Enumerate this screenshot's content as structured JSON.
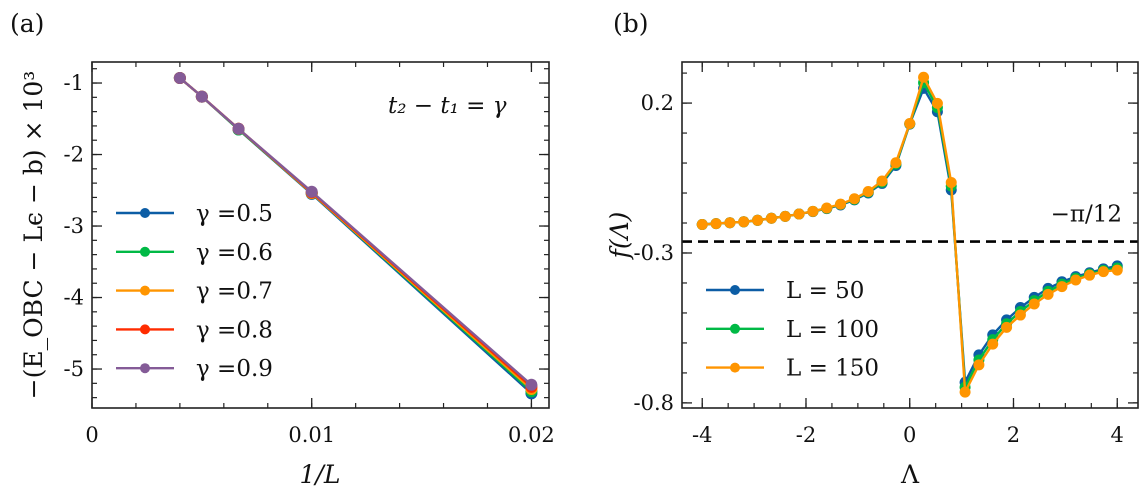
{
  "chart_data": [
    {
      "type": "line",
      "panel_label": "(a)",
      "xlabel": "1/L",
      "ylabel": "−(E_OBC − Lϵ − b) × 10³",
      "xlim": [
        0,
        0.0208
      ],
      "ylim": [
        -5.545,
        -0.706
      ],
      "xticks": [
        0,
        0.01,
        0.02
      ],
      "xtick_labels": [
        "0",
        "0.01",
        "0.02"
      ],
      "yticks": [
        -1,
        -2,
        -3,
        -4,
        -5
      ],
      "ytick_labels": [
        "-1",
        "-2",
        "-3",
        "-4",
        "-5"
      ],
      "xminor": 0.002,
      "yminor": 0.2,
      "annotation": "t₂ − t₁ = γ",
      "legend_position": "center-left",
      "x": [
        0.004,
        0.005,
        0.00667,
        0.01,
        0.02
      ],
      "series": [
        {
          "name": "γ =0.5",
          "color": "#0C5DA5",
          "values": [
            -0.93,
            -1.19,
            -1.65,
            -2.55,
            -5.34
          ]
        },
        {
          "name": "γ =0.6",
          "color": "#00B945",
          "values": [
            -0.93,
            -1.19,
            -1.65,
            -2.54,
            -5.31
          ]
        },
        {
          "name": "γ =0.7",
          "color": "#FF9500",
          "values": [
            -0.93,
            -1.19,
            -1.64,
            -2.54,
            -5.28
          ]
        },
        {
          "name": "γ =0.8",
          "color": "#FF2C00",
          "values": [
            -0.93,
            -1.19,
            -1.64,
            -2.53,
            -5.25
          ]
        },
        {
          "name": "γ =0.9",
          "color": "#845B97",
          "values": [
            -0.93,
            -1.19,
            -1.64,
            -2.52,
            -5.22
          ]
        }
      ]
    },
    {
      "type": "line",
      "panel_label": "(b)",
      "xlabel": "Λ",
      "ylabel": "f(Λ)",
      "xlim": [
        -4.39,
        4.4
      ],
      "ylim": [
        -0.817,
        0.337
      ],
      "xticks": [
        -4,
        -2,
        0,
        2,
        4
      ],
      "xtick_labels": [
        "-4",
        "-2",
        "0",
        "2",
        "4"
      ],
      "yticks": [
        0.2,
        -0.3,
        -0.8
      ],
      "ytick_labels": [
        "0.2",
        "-0.3",
        "-0.8"
      ],
      "xminor": 0.5,
      "yminor": 0.1,
      "hline": {
        "value": -0.2618,
        "label": "−π/12"
      },
      "legend_position": "lower-left",
      "x_range": {
        "start": -4,
        "stop": 4,
        "count": 31
      },
      "series": [
        {
          "name": "L = 50",
          "color": "#0C5DA5",
          "values": [
            -0.205,
            -0.202,
            -0.199,
            -0.196,
            -0.191,
            -0.184,
            -0.178,
            -0.17,
            -0.162,
            -0.152,
            -0.14,
            -0.123,
            -0.1,
            -0.068,
            -0.008,
            0.13,
            0.249,
            0.171,
            -0.09,
            -0.731,
            -0.64,
            -0.573,
            -0.523,
            -0.482,
            -0.448,
            -0.418,
            -0.396,
            -0.379,
            -0.366,
            -0.353,
            -0.343
          ]
        },
        {
          "name": "L = 100",
          "color": "#00B945",
          "values": [
            -0.205,
            -0.202,
            -0.199,
            -0.196,
            -0.191,
            -0.184,
            -0.178,
            -0.17,
            -0.161,
            -0.151,
            -0.138,
            -0.121,
            -0.097,
            -0.064,
            -0.003,
            0.131,
            0.268,
            0.185,
            -0.077,
            -0.748,
            -0.657,
            -0.589,
            -0.536,
            -0.495,
            -0.459,
            -0.428,
            -0.404,
            -0.384,
            -0.37,
            -0.358,
            -0.35
          ]
        },
        {
          "name": "L = 150",
          "color": "#FF9500",
          "values": [
            -0.205,
            -0.202,
            -0.199,
            -0.196,
            -0.191,
            -0.184,
            -0.178,
            -0.17,
            -0.161,
            -0.15,
            -0.137,
            -0.119,
            -0.095,
            -0.06,
            0.001,
            0.132,
            0.286,
            0.199,
            -0.065,
            -0.764,
            -0.673,
            -0.604,
            -0.548,
            -0.507,
            -0.47,
            -0.438,
            -0.412,
            -0.39,
            -0.374,
            -0.362,
            -0.357
          ]
        }
      ]
    }
  ]
}
